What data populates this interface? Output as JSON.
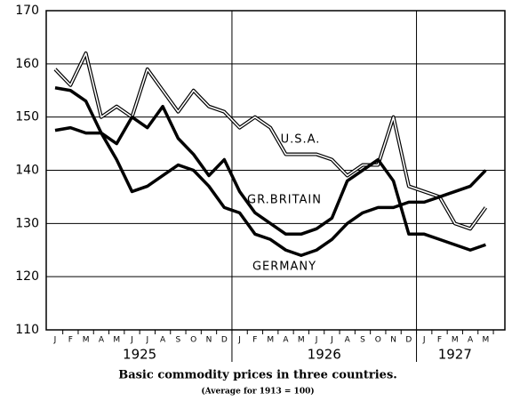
{
  "chart_data": {
    "type": "line",
    "title": "Basic commodity prices in three countries.",
    "subtitle": "(Average for 1913 = 100)",
    "categories": [
      "J",
      "F",
      "M",
      "A",
      "M",
      "J",
      "J",
      "A",
      "S",
      "O",
      "N",
      "D",
      "J",
      "F",
      "M",
      "A",
      "M",
      "J",
      "J",
      "A",
      "S",
      "O",
      "N",
      "D",
      "J",
      "F",
      "M",
      "A",
      "M"
    ],
    "years": [
      "1925",
      "1926",
      "1927"
    ],
    "series": [
      {
        "name": "U.S.A.",
        "color": "#000000",
        "values": [
          159,
          156,
          162,
          150,
          152,
          150,
          159,
          155,
          151,
          155,
          152,
          151,
          148,
          150,
          148,
          143,
          143,
          143,
          142,
          139,
          141,
          141,
          150,
          137,
          136,
          135,
          130,
          129,
          133
        ]
      },
      {
        "name": "GR.BRITAIN",
        "color": "#000000",
        "values": [
          155.5,
          155,
          153,
          147,
          145,
          150,
          148,
          152,
          146,
          143,
          139,
          142,
          136,
          132,
          130,
          128,
          128,
          129,
          131,
          138,
          140,
          142,
          138,
          128,
          128,
          127,
          126,
          125,
          126
        ]
      },
      {
        "name": "GERMANY",
        "color": "#000000",
        "values": [
          147.5,
          148,
          147,
          147,
          142,
          136,
          137,
          139,
          141,
          140,
          137,
          133,
          132,
          128,
          127,
          125,
          124,
          125,
          127,
          130,
          132,
          133,
          133,
          134,
          134,
          135,
          136,
          137,
          140
        ]
      }
    ],
    "ylim": [
      110,
      170
    ],
    "yticks": [
      110,
      120,
      130,
      140,
      150,
      160,
      170
    ],
    "grid": true
  }
}
